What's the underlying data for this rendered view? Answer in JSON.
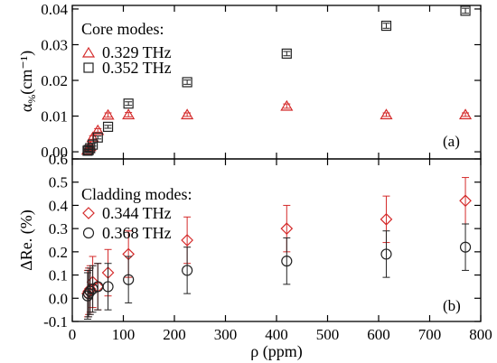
{
  "chart_data": [
    {
      "type": "scatter",
      "panel_label": "(a)",
      "ylabel_main": "α",
      "ylabel_sub": "%",
      "ylabel_unit": "(cm⁻¹)",
      "xlim": [
        0,
        800
      ],
      "ylim": [
        -0.002,
        0.041
      ],
      "yticks": [
        0.0,
        0.01,
        0.02,
        0.03,
        0.04
      ],
      "ytick_labels": [
        "0.00",
        "0.01",
        "0.02",
        "0.03",
        "0.04"
      ],
      "legend_title": "Core modes:",
      "legend_position": "top-left",
      "series": [
        {
          "name": "0.329 THz",
          "marker": "triangle",
          "color": "#d42a2a",
          "x": [
            30,
            32,
            35,
            40,
            50,
            70,
            110,
            225,
            420,
            615,
            770
          ],
          "y": [
            0.0005,
            0.001,
            0.0015,
            0.004,
            0.006,
            0.0103,
            0.0104,
            0.0104,
            0.0128,
            0.0104,
            0.0104
          ],
          "yerr": [
            0.0004,
            0.0004,
            0.0004,
            0.0005,
            0.0005,
            0.0006,
            0.0006,
            0.0005,
            0.0006,
            0.0005,
            0.0005
          ]
        },
        {
          "name": "0.352 THz",
          "marker": "square",
          "color": "#222222",
          "x": [
            30,
            32,
            35,
            40,
            50,
            70,
            110,
            225,
            420,
            615,
            770
          ],
          "y": [
            0.0003,
            0.0005,
            0.001,
            0.002,
            0.004,
            0.007,
            0.0135,
            0.0195,
            0.0275,
            0.0353,
            0.0395
          ],
          "yerr": [
            0.0003,
            0.0003,
            0.0003,
            0.0004,
            0.0004,
            0.0004,
            0.0005,
            0.0006,
            0.0006,
            0.0007,
            0.0007
          ]
        }
      ]
    },
    {
      "type": "scatter",
      "panel_label": "(b)",
      "xlabel": "ρ (ppm)",
      "ylabel": "ΔRe. (%)",
      "xlim": [
        0,
        800
      ],
      "ylim": [
        -0.1,
        0.6
      ],
      "xticks": [
        0,
        100,
        200,
        300,
        400,
        500,
        600,
        700,
        800
      ],
      "xtick_labels": [
        "0",
        "100",
        "200",
        "300",
        "400",
        "500",
        "600",
        "700",
        "800"
      ],
      "yticks": [
        -0.1,
        0.0,
        0.1,
        0.2,
        0.3,
        0.4,
        0.5,
        0.6
      ],
      "ytick_labels": [
        "-0.1",
        "0.0",
        "0.1",
        "0.2",
        "0.3",
        "0.4",
        "0.5",
        "0.6"
      ],
      "legend_title": "Cladding modes:",
      "legend_position": "top-left",
      "series": [
        {
          "name": "0.344 THz",
          "marker": "diamond",
          "color": "#d42a2a",
          "x": [
            30,
            32,
            35,
            40,
            50,
            70,
            110,
            225,
            420,
            615,
            770
          ],
          "y": [
            0.02,
            0.03,
            0.04,
            0.07,
            0.05,
            0.11,
            0.19,
            0.25,
            0.3,
            0.34,
            0.42
          ],
          "yerr": [
            0.1,
            0.1,
            0.1,
            0.11,
            0.1,
            0.1,
            0.1,
            0.1,
            0.1,
            0.1,
            0.1
          ]
        },
        {
          "name": "0.368 THz",
          "marker": "circle",
          "color": "#222222",
          "x": [
            30,
            32,
            35,
            40,
            50,
            70,
            110,
            225,
            420,
            615,
            770
          ],
          "y": [
            0.01,
            0.02,
            0.03,
            0.04,
            0.05,
            0.05,
            0.08,
            0.12,
            0.16,
            0.19,
            0.22
          ],
          "yerr": [
            0.1,
            0.1,
            0.1,
            0.1,
            0.1,
            0.1,
            0.1,
            0.1,
            0.1,
            0.1,
            0.1
          ]
        }
      ]
    }
  ]
}
